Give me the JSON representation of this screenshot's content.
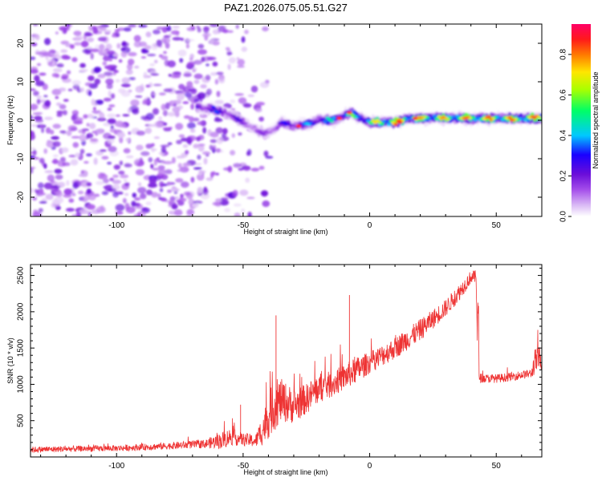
{
  "chart_data": [
    {
      "type": "heatmap",
      "title": "PAZ1.2026.075.05.51.G27",
      "xlabel": "Height of straight line (km)",
      "ylabel": "Frequency (Hz)",
      "xlim": [
        -134,
        68
      ],
      "ylim": [
        -25,
        25
      ],
      "xticks": [
        -100,
        -50,
        0,
        50
      ],
      "xtick_labels": [
        "-100",
        "-50",
        "0",
        "50"
      ],
      "yticks": [
        -20,
        -10,
        0,
        10,
        20
      ],
      "ytick_labels": [
        "-20",
        "-10",
        "0",
        "10",
        "20"
      ],
      "colorbar": {
        "label": "Normalized spectral amplitude",
        "range": [
          0,
          0.95
        ],
        "ticks": [
          0.0,
          0.2,
          0.4,
          0.6,
          0.8
        ],
        "tick_labels": [
          "0.0",
          "0.2",
          "0.4",
          "0.6",
          "0.8"
        ]
      },
      "signal_track": {
        "x": [
          -68,
          -60,
          -55,
          -50,
          -45,
          -42,
          -38,
          -35,
          -30,
          -25,
          -20,
          -15,
          -12,
          -8,
          -5,
          0,
          5,
          10,
          15,
          20,
          30,
          40,
          50,
          60,
          68
        ],
        "freq": [
          3.5,
          2.5,
          1.5,
          -0.5,
          -2.5,
          -3.5,
          -2.5,
          -0.5,
          -1.5,
          -1.0,
          0.0,
          0.0,
          0.5,
          2.0,
          1.0,
          -0.5,
          -0.5,
          -0.5,
          0.5,
          0.5,
          0.5,
          0.5,
          0.5,
          0.5,
          0.5
        ],
        "amplitude": [
          0.3,
          0.35,
          0.3,
          0.25,
          0.2,
          0.2,
          0.25,
          0.3,
          0.35,
          0.4,
          0.45,
          0.45,
          0.5,
          0.55,
          0.5,
          0.6,
          0.7,
          0.8,
          0.7,
          0.7,
          0.7,
          0.75,
          0.75,
          0.75,
          0.75
        ]
      },
      "noise_region": {
        "x_range": [
          -134,
          -43
        ],
        "amplitude_max": 0.25
      }
    },
    {
      "type": "line",
      "xlabel": "Height of straight line (km)",
      "ylabel": "SNR (10 * v/v)",
      "xlim": [
        -134,
        68
      ],
      "ylim": [
        0,
        2650
      ],
      "xticks": [
        -100,
        -50,
        0,
        50
      ],
      "xtick_labels": [
        "-100",
        "-50",
        "0",
        "50"
      ],
      "yticks": [
        500,
        1000,
        1500,
        2000,
        2500
      ],
      "ytick_labels": [
        "500",
        "1000",
        "1500",
        "2000",
        "2500"
      ],
      "color": "#ee3333",
      "series": [
        {
          "name": "SNR",
          "x": [
            -134,
            -120,
            -100,
            -80,
            -65,
            -58,
            -55,
            -50,
            -45,
            -42,
            -38,
            -35,
            -30,
            -25,
            -20,
            -15,
            -10,
            -5,
            0,
            10,
            20,
            30,
            35,
            40,
            42,
            43,
            45,
            50,
            55,
            60,
            64,
            65,
            68
          ],
          "mean": [
            100,
            110,
            120,
            150,
            180,
            230,
            280,
            240,
            220,
            400,
            700,
            780,
            700,
            800,
            950,
            1000,
            1100,
            1200,
            1300,
            1500,
            1750,
            2050,
            2250,
            2480,
            2480,
            1100,
            1080,
            1080,
            1100,
            1130,
            1150,
            1300,
            1380
          ],
          "spread": [
            70,
            70,
            70,
            80,
            100,
            200,
            200,
            150,
            150,
            400,
            600,
            500,
            400,
            350,
            350,
            300,
            300,
            300,
            250,
            250,
            250,
            200,
            200,
            150,
            150,
            120,
            100,
            100,
            100,
            100,
            100,
            300,
            300
          ]
        }
      ]
    }
  ],
  "colors": {
    "colormap": [
      "#ffffff",
      "#d9b8f5",
      "#a44dea",
      "#6a0dd9",
      "#1a00ff",
      "#00c8ff",
      "#00ff66",
      "#aaff00",
      "#ffe600",
      "#ff7a00",
      "#ff1a1a",
      "#ff0066"
    ],
    "snr_line": "#ee3333",
    "axis": "#000000"
  }
}
